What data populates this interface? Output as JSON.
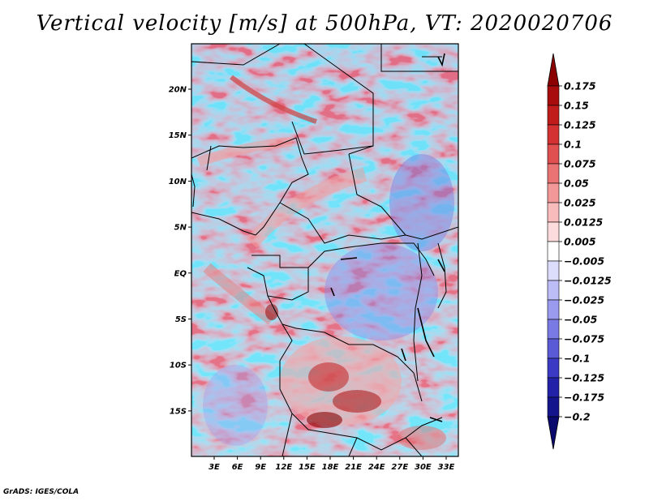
{
  "title": "Vertical velocity [m/s] at 500hPa, VT: 2020020706",
  "credit": "GrADS: IGES/COLA",
  "map": {
    "lat_labels": [
      "20N",
      "15N",
      "10N",
      "5N",
      "EQ",
      "5S",
      "10S",
      "15S"
    ],
    "lon_labels": [
      "3E",
      "6E",
      "9E",
      "12E",
      "15E",
      "18E",
      "21E",
      "24E",
      "27E",
      "30E",
      "33E"
    ]
  },
  "colorbar": {
    "labels": [
      "0.175",
      "0.15",
      "0.125",
      "0.1",
      "0.075",
      "0.05",
      "0.025",
      "0.0125",
      "0.005",
      "-0.005",
      "-0.0125",
      "-0.025",
      "-0.05",
      "-0.075",
      "-0.1",
      "-0.125",
      "-0.175",
      "-0.2"
    ],
    "colors": [
      "#8b0000",
      "#a80c0c",
      "#c01c1c",
      "#d43232",
      "#e05050",
      "#ea7474",
      "#f29898",
      "#f8bcbc",
      "#fcdcdc",
      "#ffffff",
      "#dcdcfc",
      "#bcbcf6",
      "#9a9aee",
      "#7a7ae4",
      "#5a5ad6",
      "#3a3ac4",
      "#2222a8",
      "#14148c",
      "#0a0a6e"
    ]
  }
}
